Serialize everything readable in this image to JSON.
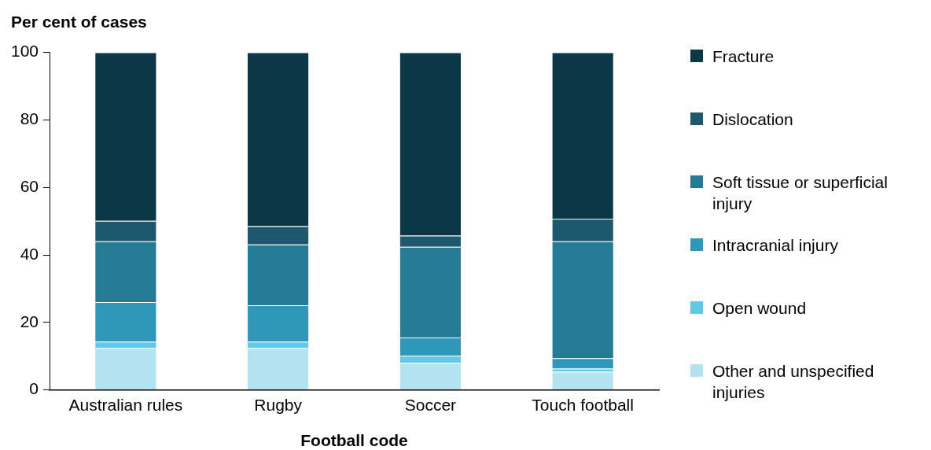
{
  "chart_data": {
    "type": "bar",
    "stacked": true,
    "ylabel": "Per cent of cases",
    "xlabel": "Football code",
    "categories": [
      "Australian rules",
      "Rugby",
      "Soccer",
      "Touch football"
    ],
    "series": [
      {
        "name": "Other and unspecified injuries",
        "color": "#b3e2f1",
        "values": [
          12.4,
          12.4,
          8.0,
          5.4
        ]
      },
      {
        "name": "Open wound",
        "color": "#62c8e6",
        "values": [
          1.9,
          1.9,
          2.1,
          0.9
        ]
      },
      {
        "name": "Intracranial injury",
        "color": "#2f98ba",
        "values": [
          11.7,
          10.8,
          5.4,
          3.1
        ]
      },
      {
        "name": "Soft tissue or superficial injury",
        "color": "#237c94",
        "values": [
          18.0,
          18.0,
          26.9,
          34.6
        ]
      },
      {
        "name": "Dislocation",
        "color": "#1d586c",
        "values": [
          6.1,
          5.4,
          3.3,
          6.7
        ]
      },
      {
        "name": "Fracture",
        "color": "#0c3747",
        "values": [
          49.9,
          51.5,
          54.3,
          49.3
        ]
      }
    ],
    "ylim": [
      0,
      100
    ],
    "yticks": [
      0,
      20,
      40,
      60,
      80,
      100
    ],
    "grid": false,
    "legend": "right"
  }
}
